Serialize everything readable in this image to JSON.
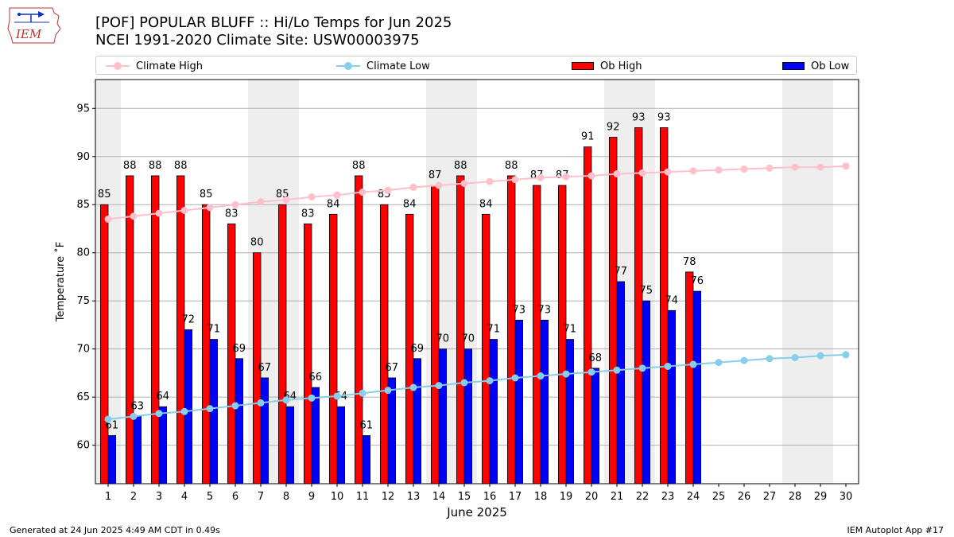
{
  "header": {
    "title_line1": "[POF] POPULAR BLUFF :: Hi/Lo Temps for Jun 2025",
    "title_line2": "NCEI 1991-2020 Climate Site: USW00003975",
    "logo_text": "IEM"
  },
  "legend": {
    "climate_high": "Climate High",
    "climate_low": "Climate Low",
    "ob_high": "Ob High",
    "ob_low": "Ob Low"
  },
  "colors": {
    "ob_high": "#ff0000",
    "ob_low": "#0000ff",
    "climate_high": "#ffc0cb",
    "climate_low": "#87ceeb",
    "weekend_band": "#eeeeee"
  },
  "footer": {
    "left": "Generated at 24 Jun 2025 4:49 AM CDT in 0.49s",
    "right": "IEM Autoplot App #17"
  },
  "chart_data": {
    "type": "bar",
    "title": "[POF] POPULAR BLUFF :: Hi/Lo Temps for Jun 2025",
    "subtitle": "NCEI 1991-2020 Climate Site: USW00003975",
    "xlabel": "June 2025",
    "ylabel": "Temperature ˚F",
    "xlim": [
      0.5,
      30.5
    ],
    "ylim": [
      56,
      98
    ],
    "yticks": [
      60,
      65,
      70,
      75,
      80,
      85,
      90,
      95
    ],
    "grid": true,
    "legend_position": "top",
    "categories": [
      "1",
      "2",
      "3",
      "4",
      "5",
      "6",
      "7",
      "8",
      "9",
      "10",
      "11",
      "12",
      "13",
      "14",
      "15",
      "16",
      "17",
      "18",
      "19",
      "20",
      "21",
      "22",
      "23",
      "24",
      "25",
      "26",
      "27",
      "28",
      "29",
      "30"
    ],
    "weekend_days": [
      1,
      7,
      8,
      14,
      15,
      21,
      22,
      28,
      29
    ],
    "series": [
      {
        "name": "Ob High",
        "kind": "bar",
        "values": [
          85,
          88,
          88,
          88,
          85,
          83,
          80,
          85,
          83,
          84,
          88,
          85,
          84,
          87,
          88,
          84,
          88,
          87,
          87,
          91,
          92,
          93,
          93,
          78,
          null,
          null,
          null,
          null,
          null,
          null
        ]
      },
      {
        "name": "Ob Low",
        "kind": "bar",
        "values": [
          61,
          63,
          64,
          72,
          71,
          69,
          67,
          64,
          66,
          64,
          61,
          67,
          69,
          70,
          70,
          71,
          73,
          73,
          71,
          68,
          77,
          75,
          74,
          76,
          null,
          null,
          null,
          null,
          null,
          null
        ]
      },
      {
        "name": "Climate High",
        "kind": "line",
        "values": [
          83.5,
          83.8,
          84.1,
          84.4,
          84.7,
          85.0,
          85.3,
          85.5,
          85.8,
          86.0,
          86.3,
          86.5,
          86.8,
          87.0,
          87.2,
          87.4,
          87.6,
          87.8,
          87.9,
          88.0,
          88.2,
          88.3,
          88.4,
          88.5,
          88.6,
          88.7,
          88.8,
          88.9,
          88.9,
          89.0
        ]
      },
      {
        "name": "Climate Low",
        "kind": "line",
        "values": [
          62.7,
          63.0,
          63.3,
          63.5,
          63.8,
          64.1,
          64.4,
          64.7,
          64.9,
          65.1,
          65.4,
          65.7,
          66.0,
          66.2,
          66.5,
          66.7,
          67.0,
          67.2,
          67.4,
          67.6,
          67.8,
          68.0,
          68.2,
          68.4,
          68.6,
          68.8,
          69.0,
          69.1,
          69.3,
          69.4
        ]
      }
    ]
  }
}
